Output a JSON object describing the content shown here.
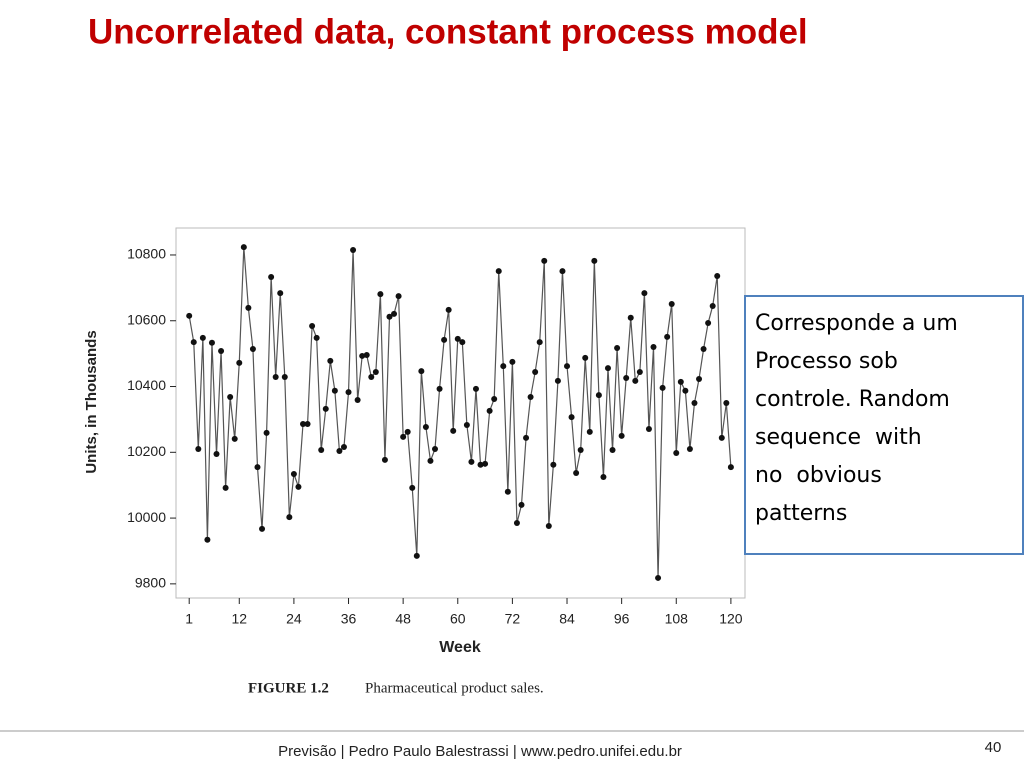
{
  "title": "Uncorrelated data, constant process model",
  "chart_data": {
    "type": "line",
    "xlabel": "Week",
    "ylabel": "Units, in Thousands",
    "caption_label": "FIGURE 1.2",
    "caption": "Pharmaceutical product sales.",
    "x": [
      1,
      2,
      3,
      4,
      5,
      6,
      7,
      8,
      9,
      10,
      11,
      12,
      13,
      14,
      15,
      16,
      17,
      18,
      19,
      20,
      21,
      22,
      23,
      24,
      25,
      26,
      27,
      28,
      29,
      30,
      31,
      32,
      33,
      34,
      35,
      36,
      37,
      38,
      39,
      40,
      41,
      42,
      43,
      44,
      45,
      46,
      47,
      48,
      49,
      50,
      51,
      52,
      53,
      54,
      55,
      56,
      57,
      58,
      59,
      60,
      61,
      62,
      63,
      64,
      65,
      66,
      67,
      68,
      69,
      70,
      71,
      72,
      73,
      74,
      75,
      76,
      77,
      78,
      79,
      80,
      81,
      82,
      83,
      84,
      85,
      86,
      87,
      88,
      89,
      90,
      91,
      92,
      93,
      94,
      95,
      96,
      97,
      98,
      99,
      100,
      101,
      102,
      103,
      104,
      105,
      106,
      107,
      108,
      109,
      110,
      111,
      112,
      113,
      114,
      115,
      116,
      117,
      118,
      119,
      120
    ],
    "series": [
      {
        "color": "#555555",
        "marker_color": "#111111",
        "values": [
          10615,
          10535,
          10210,
          10548,
          9934,
          10533,
          10195,
          10508,
          10092,
          10368,
          10241,
          10472,
          10824,
          10639,
          10514,
          10155,
          9967,
          10259,
          10733,
          10429,
          10684,
          10429,
          10003,
          10134,
          10095,
          10286,
          10286,
          10584,
          10548,
          10207,
          10332,
          10478,
          10387,
          10204,
          10216,
          10383,
          10815,
          10359,
          10493,
          10496,
          10429,
          10444,
          10681,
          10177,
          10612,
          10621,
          10675,
          10247,
          10262,
          10092,
          9885,
          10447,
          10277,
          10174,
          10210,
          10393,
          10542,
          10633,
          10265,
          10545,
          10535,
          10283,
          10171,
          10393,
          10162,
          10165,
          10326,
          10362,
          10751,
          10462,
          10080,
          10475,
          9985,
          10040,
          10244,
          10368,
          10444,
          10535,
          10782,
          9976,
          10162,
          10417,
          10751,
          10462,
          10307,
          10137,
          10207,
          10487,
          10262,
          10782,
          10374,
          10125,
          10456,
          10207,
          10517,
          10250,
          10426,
          10609,
          10417,
          10444,
          10684,
          10271,
          10520,
          9818,
          10396,
          10551,
          10651,
          10198,
          10414,
          10387,
          10210,
          10350,
          10423,
          10514,
          10593,
          10645,
          10736,
          10244,
          10350,
          10155
        ]
      }
    ],
    "xlim": [
      -1.9,
      123.1
    ],
    "ylim": [
      9757,
      10882
    ],
    "xticks": [
      1,
      12,
      24,
      36,
      48,
      60,
      72,
      84,
      96,
      108,
      120
    ],
    "yticks": [
      9800,
      10000,
      10200,
      10400,
      10600,
      10800
    ]
  },
  "textbox": {
    "lines": [
      "Corresponde a um",
      "Processo sob",
      "controle. Random",
      "sequence  with",
      "no  obvious",
      "patterns"
    ]
  },
  "footer": "Previsão | Pedro Paulo Balestrassi | www.pedro.unifei.edu.br",
  "page_number": "40"
}
